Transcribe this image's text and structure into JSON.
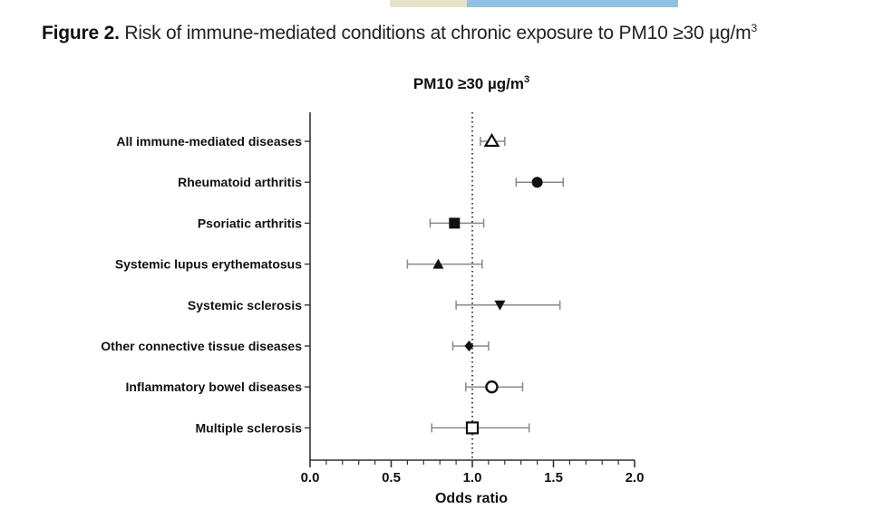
{
  "figure": {
    "label": "Figure 2.",
    "text": " Risk of immune-mediated conditions at chronic exposure to PM10 ≥30 µg/m",
    "unit_sup": "3"
  },
  "chart_data": {
    "type": "scatter",
    "subtype": "forest-plot",
    "title": "PM10 ≥30 µg/m",
    "title_sup": "3",
    "xlabel": "Odds ratio",
    "ylabel": "",
    "xlim": [
      0.0,
      2.0
    ],
    "xticks": [
      "0.0",
      "0.5",
      "1.0",
      "1.5",
      "2.0"
    ],
    "reference_line": 1.0,
    "reference_style": "dotted",
    "grid": false,
    "categories": [
      "All immune-mediated diseases",
      "Rheumatoid arthritis",
      "Psoriatic arthritis",
      "Systemic lupus erythematosus",
      "Systemic sclerosis",
      "Other connective tissue diseases",
      "Inflammatory bowel diseases",
      "Multiple sclerosis"
    ],
    "estimates": [
      1.12,
      1.4,
      0.89,
      0.79,
      1.17,
      0.98,
      1.12,
      1.0
    ],
    "ci_low": [
      1.05,
      1.27,
      0.74,
      0.6,
      0.9,
      0.88,
      0.96,
      0.75
    ],
    "ci_high": [
      1.2,
      1.56,
      1.07,
      1.06,
      1.54,
      1.1,
      1.31,
      1.35
    ],
    "markers": [
      "triangle-up-open",
      "circle-filled",
      "square-filled",
      "triangle-up-filled",
      "triangle-down-filled",
      "diamond-filled",
      "circle-open",
      "square-open"
    ],
    "colors": {
      "ink": "#111111",
      "whisker": "#888888",
      "axis": "#333333"
    }
  }
}
